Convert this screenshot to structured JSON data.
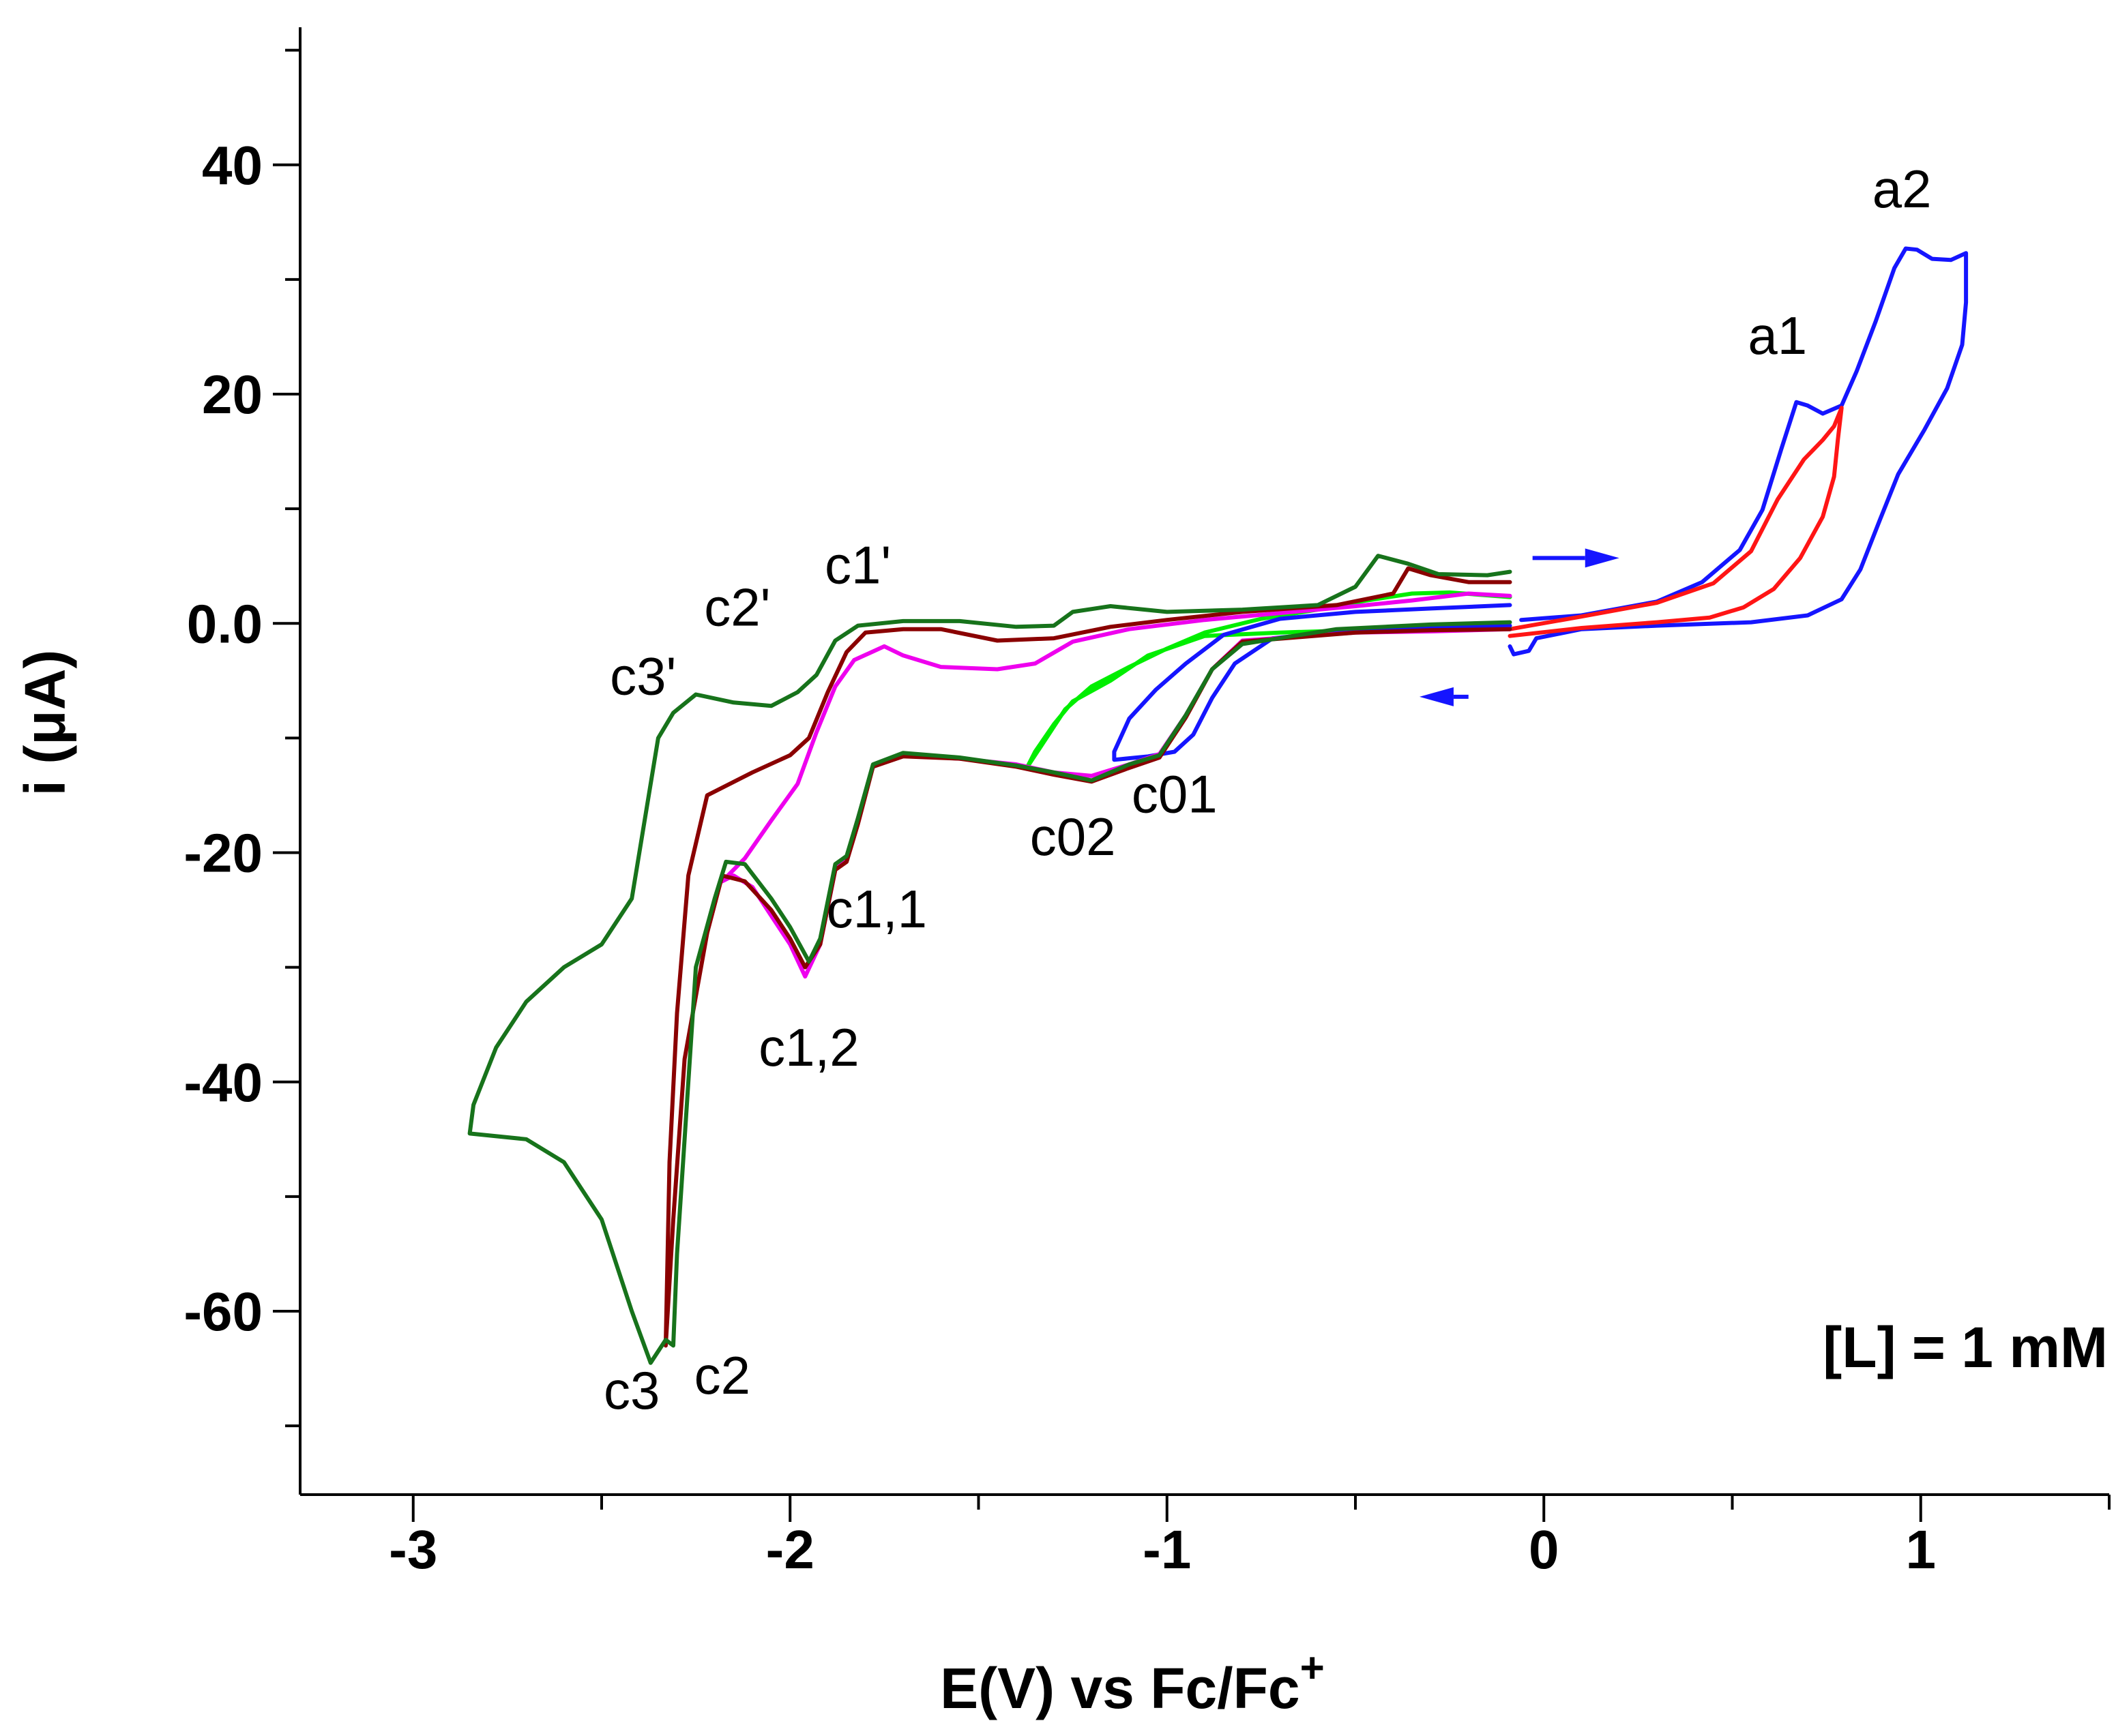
{
  "chart_data": {
    "type": "line",
    "title": "",
    "xlabel": "E(V) vs Fc/Fc",
    "xlabel_superscript": "+",
    "ylabel": "i (μA)",
    "xlim": [
      -3.3,
      1.5
    ],
    "ylim": [
      -76,
      52
    ],
    "x_ticks": [
      -3,
      -2,
      -1,
      0,
      1
    ],
    "x_tick_labels": [
      "-3",
      "-2",
      "-1",
      "0",
      "1"
    ],
    "y_ticks": [
      40,
      20,
      0,
      -20,
      -40,
      -60
    ],
    "y_tick_labels": [
      "40",
      "20",
      "0.0",
      "-20",
      "-40",
      "-60"
    ],
    "grid": false,
    "annotation_note": "[L] = 1 mM",
    "peak_labels": [
      {
        "text": "a2",
        "x": 0.95,
        "y": 36.3
      },
      {
        "text": "a1",
        "x": 0.62,
        "y": 23.5
      },
      {
        "text": "c1'",
        "x": -1.82,
        "y": 3.5
      },
      {
        "text": "c2'",
        "x": -2.14,
        "y": -0.2
      },
      {
        "text": "c3'",
        "x": -2.39,
        "y": -6.2
      },
      {
        "text": "c01",
        "x": -0.98,
        "y": -16.5
      },
      {
        "text": "c02",
        "x": -1.25,
        "y": -20.2
      },
      {
        "text": "c1,1",
        "x": -1.77,
        "y": -26.5
      },
      {
        "text": "c1,2",
        "x": -1.95,
        "y": -38.6
      },
      {
        "text": "c3",
        "x": -2.42,
        "y": -68.5
      },
      {
        "text": "c2",
        "x": -2.18,
        "y": -67.2
      }
    ],
    "scan_arrows": [
      {
        "direction": "right",
        "x_from": -0.03,
        "x_to": 0.2,
        "y": 5.7,
        "color": "#1515ff"
      },
      {
        "direction": "left",
        "x_from": -0.2,
        "x_to": -0.33,
        "y": -6.4,
        "color": "#1515ff"
      }
    ],
    "series": [
      {
        "name": "blue",
        "color": "#1515ff",
        "points": [
          [
            -0.06,
            0.3
          ],
          [
            0.1,
            0.7
          ],
          [
            0.3,
            1.9
          ],
          [
            0.42,
            3.6
          ],
          [
            0.52,
            6.4
          ],
          [
            0.58,
            9.9
          ],
          [
            0.63,
            15.2
          ],
          [
            0.67,
            19.3
          ],
          [
            0.7,
            19.0
          ],
          [
            0.74,
            18.3
          ],
          [
            0.79,
            19.0
          ],
          [
            0.83,
            22.0
          ],
          [
            0.88,
            26.3
          ],
          [
            0.93,
            31.0
          ],
          [
            0.96,
            32.7
          ],
          [
            0.99,
            32.6
          ],
          [
            1.03,
            31.8
          ],
          [
            1.08,
            31.7
          ],
          [
            1.12,
            32.3
          ],
          [
            1.12,
            28.0
          ],
          [
            1.11,
            24.3
          ],
          [
            1.07,
            20.5
          ],
          [
            1.01,
            16.9
          ],
          [
            0.94,
            13.0
          ],
          [
            0.89,
            8.9
          ],
          [
            0.84,
            4.7
          ],
          [
            0.79,
            2.1
          ],
          [
            0.7,
            0.7
          ],
          [
            0.55,
            0.1
          ],
          [
            0.3,
            -0.2
          ],
          [
            0.1,
            -0.5
          ],
          [
            -0.02,
            -1.3
          ],
          [
            -0.04,
            -2.4
          ],
          [
            -0.08,
            -2.7
          ],
          [
            -0.09,
            -2.0
          ]
        ]
      },
      {
        "name": "red",
        "color": "#ff1515",
        "points": [
          [
            -0.09,
            -0.5
          ],
          [
            0.1,
            0.6
          ],
          [
            0.3,
            1.8
          ],
          [
            0.45,
            3.5
          ],
          [
            0.55,
            6.3
          ],
          [
            0.62,
            10.8
          ],
          [
            0.69,
            14.3
          ],
          [
            0.74,
            16.0
          ],
          [
            0.77,
            17.2
          ],
          [
            0.79,
            18.8
          ],
          [
            0.78,
            16.0
          ],
          [
            0.77,
            12.8
          ],
          [
            0.74,
            9.3
          ],
          [
            0.68,
            5.7
          ],
          [
            0.61,
            3.0
          ],
          [
            0.53,
            1.4
          ],
          [
            0.44,
            0.5
          ],
          [
            0.3,
            0.1
          ],
          [
            0.1,
            -0.4
          ],
          [
            -0.09,
            -1.1
          ]
        ]
      },
      {
        "name": "green",
        "color": "#00ee00",
        "points": [
          [
            -0.09,
            -0.4
          ],
          [
            -0.4,
            -0.5
          ],
          [
            -0.7,
            -0.8
          ],
          [
            -0.9,
            -1.1
          ],
          [
            -1.05,
            -2.8
          ],
          [
            -1.15,
            -5.0
          ],
          [
            -1.25,
            -6.8
          ],
          [
            -1.3,
            -8.8
          ],
          [
            -1.35,
            -11.2
          ],
          [
            -1.37,
            -12.5
          ],
          [
            -1.33,
            -10.5
          ],
          [
            -1.27,
            -7.5
          ],
          [
            -1.2,
            -5.5
          ],
          [
            -1.1,
            -3.8
          ],
          [
            -1.0,
            -2.2
          ],
          [
            -0.9,
            -0.8
          ],
          [
            -0.75,
            0.4
          ],
          [
            -0.6,
            1.2
          ],
          [
            -0.47,
            2.0
          ],
          [
            -0.35,
            2.6
          ],
          [
            -0.25,
            2.7
          ],
          [
            -0.09,
            2.3
          ]
        ]
      },
      {
        "name": "blue-reverse",
        "color": "#1515ff",
        "points": [
          [
            -0.09,
            1.6
          ],
          [
            -0.3,
            1.3
          ],
          [
            -0.5,
            1.0
          ],
          [
            -0.7,
            0.4
          ],
          [
            -0.85,
            -1.0
          ],
          [
            -0.95,
            -3.5
          ],
          [
            -1.03,
            -5.8
          ],
          [
            -1.1,
            -8.3
          ],
          [
            -1.14,
            -11.2
          ],
          [
            -1.14,
            -11.9
          ],
          [
            -1.05,
            -11.6
          ],
          [
            -0.98,
            -11.2
          ],
          [
            -0.93,
            -9.7
          ],
          [
            -0.88,
            -6.5
          ],
          [
            -0.82,
            -3.5
          ],
          [
            -0.72,
            -1.3
          ],
          [
            -0.5,
            -0.6
          ],
          [
            -0.2,
            -0.3
          ],
          [
            -0.09,
            -0.2
          ]
        ]
      },
      {
        "name": "magenta",
        "color": "#ee00ee",
        "points": [
          [
            -0.09,
            -0.5
          ],
          [
            -0.3,
            -0.7
          ],
          [
            -0.5,
            -0.8
          ],
          [
            -0.8,
            -1.5
          ],
          [
            -0.88,
            -4.0
          ],
          [
            -0.95,
            -8.0
          ],
          [
            -1.02,
            -11.4
          ],
          [
            -1.1,
            -12.3
          ],
          [
            -1.2,
            -13.3
          ],
          [
            -1.3,
            -13.0
          ],
          [
            -1.4,
            -12.3
          ],
          [
            -1.55,
            -11.8
          ],
          [
            -1.7,
            -11.5
          ],
          [
            -1.78,
            -12.5
          ],
          [
            -1.82,
            -17.0
          ],
          [
            -1.85,
            -20.5
          ],
          [
            -1.88,
            -21.5
          ],
          [
            -1.92,
            -28.0
          ],
          [
            -1.96,
            -30.8
          ],
          [
            -2.0,
            -28.0
          ],
          [
            -2.05,
            -25.5
          ],
          [
            -2.1,
            -23.0
          ],
          [
            -2.15,
            -22.0
          ],
          [
            -2.18,
            -22.5
          ],
          [
            -2.12,
            -20.5
          ],
          [
            -2.05,
            -17.2
          ],
          [
            -1.98,
            -14.0
          ],
          [
            -1.93,
            -9.5
          ],
          [
            -1.88,
            -5.5
          ],
          [
            -1.83,
            -3.2
          ],
          [
            -1.75,
            -2.0
          ],
          [
            -1.7,
            -2.8
          ],
          [
            -1.6,
            -3.8
          ],
          [
            -1.45,
            -4.0
          ],
          [
            -1.35,
            -3.5
          ],
          [
            -1.25,
            -1.6
          ],
          [
            -1.1,
            -0.5
          ],
          [
            -0.9,
            0.3
          ],
          [
            -0.7,
            0.9
          ],
          [
            -0.5,
            1.5
          ],
          [
            -0.35,
            2.0
          ],
          [
            -0.2,
            2.6
          ],
          [
            -0.09,
            2.4
          ]
        ]
      },
      {
        "name": "darkred",
        "color": "#8a0000",
        "points": [
          [
            -0.09,
            -0.5
          ],
          [
            -0.3,
            -0.6
          ],
          [
            -0.5,
            -0.8
          ],
          [
            -0.8,
            -1.6
          ],
          [
            -0.88,
            -4.0
          ],
          [
            -0.95,
            -8.2
          ],
          [
            -1.02,
            -11.7
          ],
          [
            -1.1,
            -12.6
          ],
          [
            -1.2,
            -13.8
          ],
          [
            -1.3,
            -13.2
          ],
          [
            -1.4,
            -12.5
          ],
          [
            -1.55,
            -11.8
          ],
          [
            -1.7,
            -11.6
          ],
          [
            -1.78,
            -12.5
          ],
          [
            -1.82,
            -17.5
          ],
          [
            -1.85,
            -20.8
          ],
          [
            -1.88,
            -21.5
          ],
          [
            -1.92,
            -28.0
          ],
          [
            -1.96,
            -30.0
          ],
          [
            -2.0,
            -27.5
          ],
          [
            -2.05,
            -25.0
          ],
          [
            -2.12,
            -22.5
          ],
          [
            -2.18,
            -22.0
          ],
          [
            -2.22,
            -27.0
          ],
          [
            -2.28,
            -38.0
          ],
          [
            -2.31,
            -52.0
          ],
          [
            -2.33,
            -63.0
          ],
          [
            -2.32,
            -47.0
          ],
          [
            -2.3,
            -34.0
          ],
          [
            -2.27,
            -22.0
          ],
          [
            -2.22,
            -15.0
          ],
          [
            -2.1,
            -13.0
          ],
          [
            -2.0,
            -11.5
          ],
          [
            -1.95,
            -10.0
          ],
          [
            -1.9,
            -6.0
          ],
          [
            -1.85,
            -2.5
          ],
          [
            -1.8,
            -0.8
          ],
          [
            -1.7,
            -0.5
          ],
          [
            -1.6,
            -0.5
          ],
          [
            -1.45,
            -1.5
          ],
          [
            -1.3,
            -1.3
          ],
          [
            -1.15,
            -0.3
          ],
          [
            -1.0,
            0.3
          ],
          [
            -0.8,
            1.0
          ],
          [
            -0.55,
            1.6
          ],
          [
            -0.4,
            2.6
          ],
          [
            -0.36,
            4.8
          ],
          [
            -0.3,
            4.2
          ],
          [
            -0.2,
            3.6
          ],
          [
            -0.09,
            3.6
          ]
        ]
      },
      {
        "name": "darkgreen",
        "color": "#17731b",
        "points": [
          [
            -0.09,
            0.1
          ],
          [
            -0.3,
            -0.1
          ],
          [
            -0.55,
            -0.5
          ],
          [
            -0.8,
            -1.8
          ],
          [
            -0.88,
            -4.0
          ],
          [
            -0.95,
            -8.0
          ],
          [
            -1.02,
            -11.5
          ],
          [
            -1.1,
            -12.3
          ],
          [
            -1.2,
            -13.7
          ],
          [
            -1.3,
            -13.0
          ],
          [
            -1.4,
            -12.4
          ],
          [
            -1.55,
            -11.7
          ],
          [
            -1.7,
            -11.3
          ],
          [
            -1.78,
            -12.3
          ],
          [
            -1.82,
            -17.0
          ],
          [
            -1.85,
            -20.3
          ],
          [
            -1.88,
            -21.0
          ],
          [
            -1.92,
            -27.5
          ],
          [
            -1.95,
            -29.5
          ],
          [
            -2.0,
            -26.5
          ],
          [
            -2.05,
            -24.0
          ],
          [
            -2.12,
            -21.0
          ],
          [
            -2.17,
            -20.8
          ],
          [
            -2.2,
            -24.0
          ],
          [
            -2.25,
            -30.0
          ],
          [
            -2.28,
            -45.0
          ],
          [
            -2.3,
            -55.0
          ],
          [
            -2.31,
            -63.0
          ],
          [
            -2.33,
            -62.5
          ],
          [
            -2.37,
            -64.5
          ],
          [
            -2.42,
            -60.0
          ],
          [
            -2.5,
            -52.0
          ],
          [
            -2.6,
            -47.0
          ],
          [
            -2.7,
            -45.0
          ],
          [
            -2.85,
            -44.5
          ],
          [
            -2.84,
            -42.0
          ],
          [
            -2.78,
            -37.0
          ],
          [
            -2.7,
            -33.0
          ],
          [
            -2.6,
            -30.0
          ],
          [
            -2.5,
            -28.0
          ],
          [
            -2.42,
            -24.0
          ],
          [
            -2.38,
            -16.0
          ],
          [
            -2.35,
            -10.0
          ],
          [
            -2.31,
            -7.8
          ],
          [
            -2.25,
            -6.2
          ],
          [
            -2.15,
            -6.9
          ],
          [
            -2.05,
            -7.2
          ],
          [
            -1.98,
            -6.0
          ],
          [
            -1.93,
            -4.5
          ],
          [
            -1.88,
            -1.5
          ],
          [
            -1.82,
            -0.2
          ],
          [
            -1.7,
            0.2
          ],
          [
            -1.55,
            0.2
          ],
          [
            -1.4,
            -0.3
          ],
          [
            -1.3,
            -0.2
          ],
          [
            -1.25,
            1.0
          ],
          [
            -1.15,
            1.5
          ],
          [
            -1.0,
            1.0
          ],
          [
            -0.8,
            1.2
          ],
          [
            -0.6,
            1.6
          ],
          [
            -0.5,
            3.2
          ],
          [
            -0.44,
            5.9
          ],
          [
            -0.36,
            5.2
          ],
          [
            -0.28,
            4.3
          ],
          [
            -0.15,
            4.2
          ],
          [
            -0.09,
            4.5
          ]
        ]
      }
    ]
  }
}
